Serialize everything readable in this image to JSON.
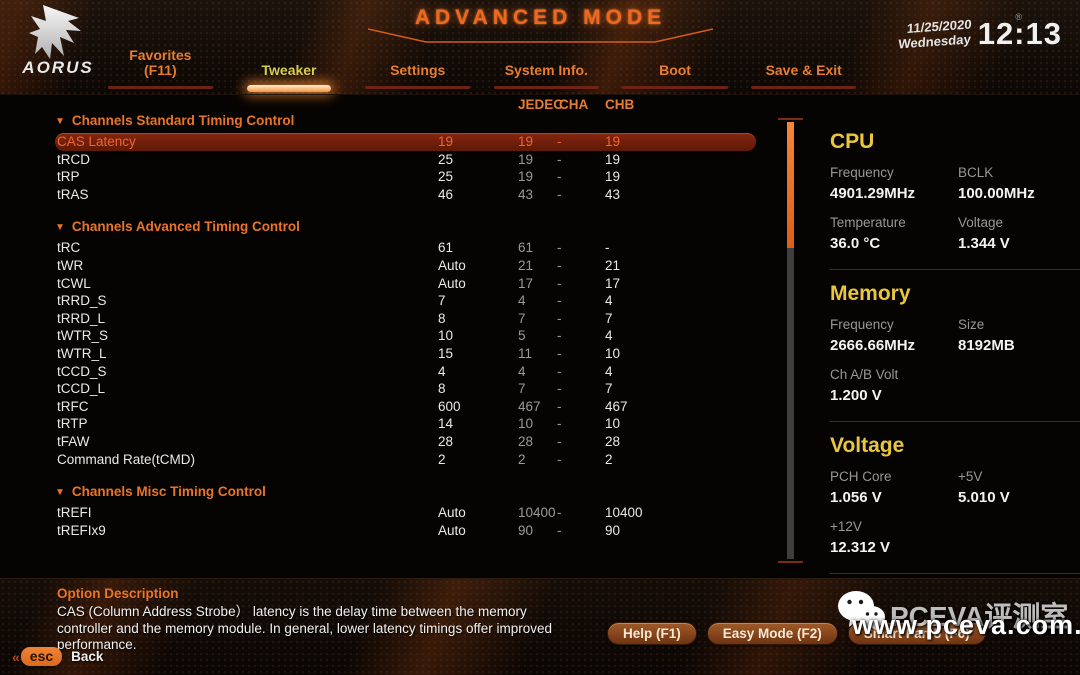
{
  "header": {
    "logo_text": "AORUS",
    "title": "ADVANCED MODE",
    "date": "11/25/2020",
    "weekday": "Wednesday",
    "time": "12:13",
    "trademark": "®"
  },
  "tabs": [
    {
      "label": "Favorites",
      "sublabel": "(F11)"
    },
    {
      "label": "Tweaker"
    },
    {
      "label": "Settings"
    },
    {
      "label": "System Info."
    },
    {
      "label": "Boot"
    },
    {
      "label": "Save & Exit"
    }
  ],
  "columns": {
    "jedec": "JEDEC",
    "cha": "CHA",
    "chb": "CHB"
  },
  "sections": [
    {
      "title": "Channels Standard Timing Control",
      "rows": [
        {
          "label": "CAS Latency",
          "value": "19",
          "jedec": "19",
          "cha": "-",
          "chb": "19",
          "highlighted": true
        },
        {
          "label": "tRCD",
          "value": "25",
          "jedec": "19",
          "cha": "-",
          "chb": "19"
        },
        {
          "label": "tRP",
          "value": "25",
          "jedec": "19",
          "cha": "-",
          "chb": "19"
        },
        {
          "label": "tRAS",
          "value": "46",
          "jedec": "43",
          "cha": "-",
          "chb": "43"
        }
      ]
    },
    {
      "title": "Channels Advanced Timing Control",
      "rows": [
        {
          "label": "tRC",
          "value": "61",
          "jedec": "61",
          "cha": "-",
          "chb": "-"
        },
        {
          "label": "tWR",
          "value": "Auto",
          "jedec": "21",
          "cha": "-",
          "chb": "21"
        },
        {
          "label": "tCWL",
          "value": "Auto",
          "jedec": "17",
          "cha": "-",
          "chb": "17"
        },
        {
          "label": "tRRD_S",
          "value": "7",
          "jedec": "4",
          "cha": "-",
          "chb": "4"
        },
        {
          "label": "tRRD_L",
          "value": "8",
          "jedec": "7",
          "cha": "-",
          "chb": "7"
        },
        {
          "label": "tWTR_S",
          "value": "10",
          "jedec": "5",
          "cha": "-",
          "chb": "4"
        },
        {
          "label": "tWTR_L",
          "value": "15",
          "jedec": "11",
          "cha": "-",
          "chb": "10"
        },
        {
          "label": "tCCD_S",
          "value": "4",
          "jedec": "4",
          "cha": "-",
          "chb": "4"
        },
        {
          "label": "tCCD_L",
          "value": "8",
          "jedec": "7",
          "cha": "-",
          "chb": "7"
        },
        {
          "label": "tRFC",
          "value": "600",
          "jedec": "467",
          "cha": "-",
          "chb": "467"
        },
        {
          "label": "tRTP",
          "value": "14",
          "jedec": "10",
          "cha": "-",
          "chb": "10"
        },
        {
          "label": "tFAW",
          "value": "28",
          "jedec": "28",
          "cha": "-",
          "chb": "28"
        },
        {
          "label": "Command Rate(tCMD)",
          "value": "2",
          "jedec": "2",
          "cha": "-",
          "chb": "2"
        }
      ]
    },
    {
      "title": "Channels Misc Timing Control",
      "rows": [
        {
          "label": "tREFI",
          "value": "Auto",
          "jedec": "10400",
          "cha": "-",
          "chb": "10400"
        },
        {
          "label": "tREFIx9",
          "value": "Auto",
          "jedec": "90",
          "cha": "-",
          "chb": "90"
        }
      ]
    }
  ],
  "info_panels": [
    {
      "title": "CPU",
      "items": [
        {
          "label": "Frequency",
          "value": "4901.29MHz"
        },
        {
          "label": "BCLK",
          "value": "100.00MHz"
        },
        {
          "label": "Temperature",
          "value": "36.0 °C"
        },
        {
          "label": "Voltage",
          "value": "1.344 V"
        }
      ]
    },
    {
      "title": "Memory",
      "items": [
        {
          "label": "Frequency",
          "value": "2666.66MHz"
        },
        {
          "label": "Size",
          "value": "8192MB"
        },
        {
          "label": "Ch A/B Volt",
          "value": "1.200 V"
        }
      ]
    },
    {
      "title": "Voltage",
      "items": [
        {
          "label": "PCH Core",
          "value": "1.056 V"
        },
        {
          "label": "+5V",
          "value": "5.010 V"
        },
        {
          "label": "+12V",
          "value": "12.312 V"
        }
      ]
    }
  ],
  "footer": {
    "description_title": "Option Description",
    "description": "CAS (Column Address Strobe） latency is the delay time between the memory controller and the memory module. In general, lower latency timings offer improved performance.",
    "esc_label": "esc",
    "back_label": "Back",
    "buttons": [
      "Help (F1)",
      "Easy Mode (F2)",
      "Smart Fan 5 (F6)"
    ],
    "watermark_line1": "PCEVA评测室",
    "watermark_line2": "www.pceva.com.cn"
  },
  "colors": {
    "accent": "#e87d2e",
    "active_tab": "#d9cf4e",
    "highlight_row": "#85250f",
    "panel_title": "#e9c63d"
  }
}
